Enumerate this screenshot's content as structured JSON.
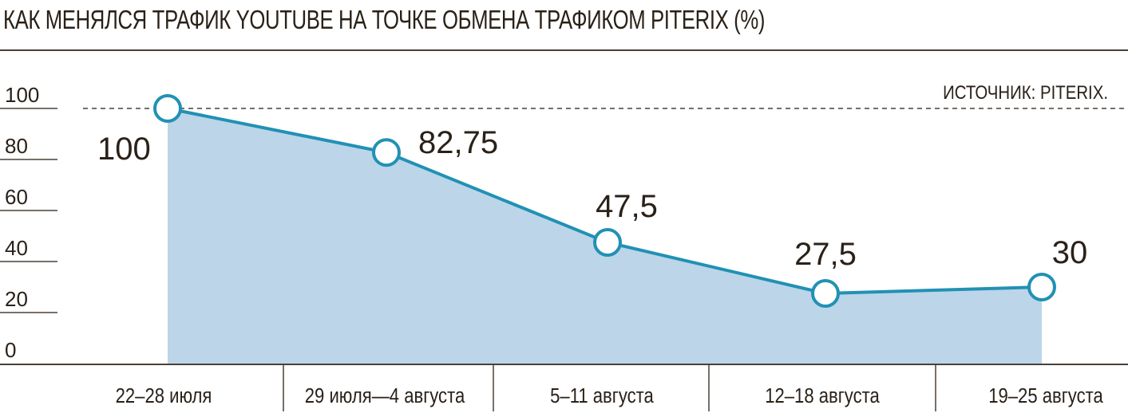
{
  "header": {
    "title": "КАК МЕНЯЛСЯ ТРАФИК YOUTUBE НА ТОЧКЕ ОБМЕНА ТРАФИКОМ PITERIX (%)"
  },
  "source": "ИСТОЧНИК: PITERIX.",
  "colors": {
    "line": "#2191b4",
    "area": "#bcd5e9",
    "text": "#2a2118",
    "axis": "#4a4037"
  },
  "chart_data": {
    "type": "area",
    "title": "КАК МЕНЯЛСЯ ТРАФИК YOUTUBE НА ТОЧКЕ ОБМЕНА ТРАФИКОМ PITERIX (%)",
    "xlabel": "",
    "ylabel": "%",
    "ylim": [
      0,
      100
    ],
    "yticks": [
      "100",
      "80",
      "60",
      "40",
      "20",
      "0"
    ],
    "categories": [
      "22–28 июля",
      "29 июля—4 августа",
      "5–11 августа",
      "12–18 августа",
      "19–25 августа"
    ],
    "series": [
      {
        "name": "Трафик YouTube",
        "values": [
          100,
          82.75,
          47.5,
          27.5,
          30
        ],
        "labels": [
          "100",
          "82,75",
          "47,5",
          "27,5",
          "30"
        ]
      }
    ],
    "reference_line": {
      "value": 100,
      "style": "dashed"
    },
    "grid": false,
    "legend": "none",
    "annotations": [
      "ИСТОЧНИК: PITERIX."
    ]
  }
}
